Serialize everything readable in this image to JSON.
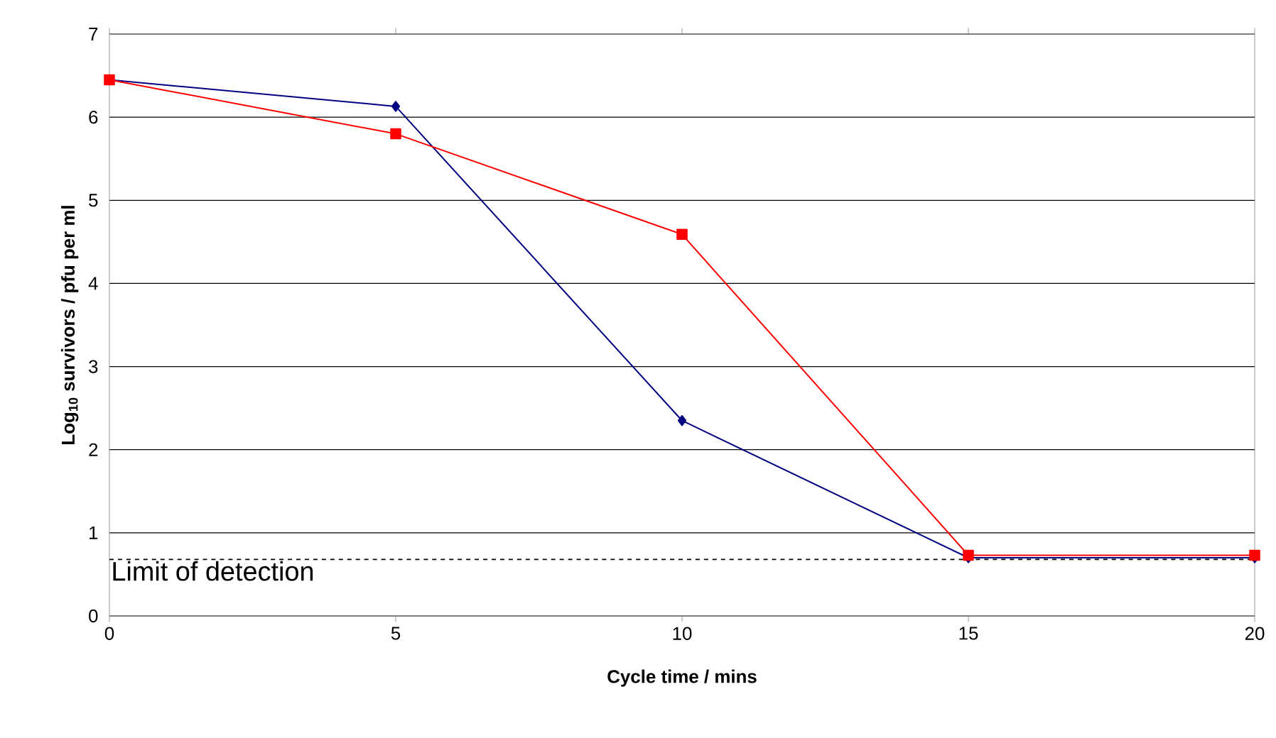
{
  "chart_data": {
    "type": "line",
    "xlabel": "Cycle time / mins",
    "ylabel": "Log$_{10}$ survivors / pfu per ml",
    "x": [
      0,
      5,
      10,
      15,
      20
    ],
    "series": [
      {
        "color": "#000080",
        "marker": "diamond",
        "values": [
          6.45,
          6.13,
          2.35,
          0.7,
          0.7
        ]
      },
      {
        "color": "#ff0000",
        "marker": "square",
        "values": [
          6.45,
          5.8,
          4.59,
          0.73,
          0.73
        ]
      }
    ],
    "xlim": [
      0,
      20
    ],
    "ylim": [
      0,
      7
    ],
    "xticks": [
      0,
      5,
      10,
      15,
      20
    ],
    "yticks": [
      0,
      1,
      2,
      3,
      4,
      5,
      6,
      7
    ],
    "grid": "y",
    "ref_lines": [
      {
        "axis": "y",
        "value": 0.68,
        "label": "Limit of detection",
        "color": "#000000",
        "line_style": "dashed"
      }
    ]
  }
}
